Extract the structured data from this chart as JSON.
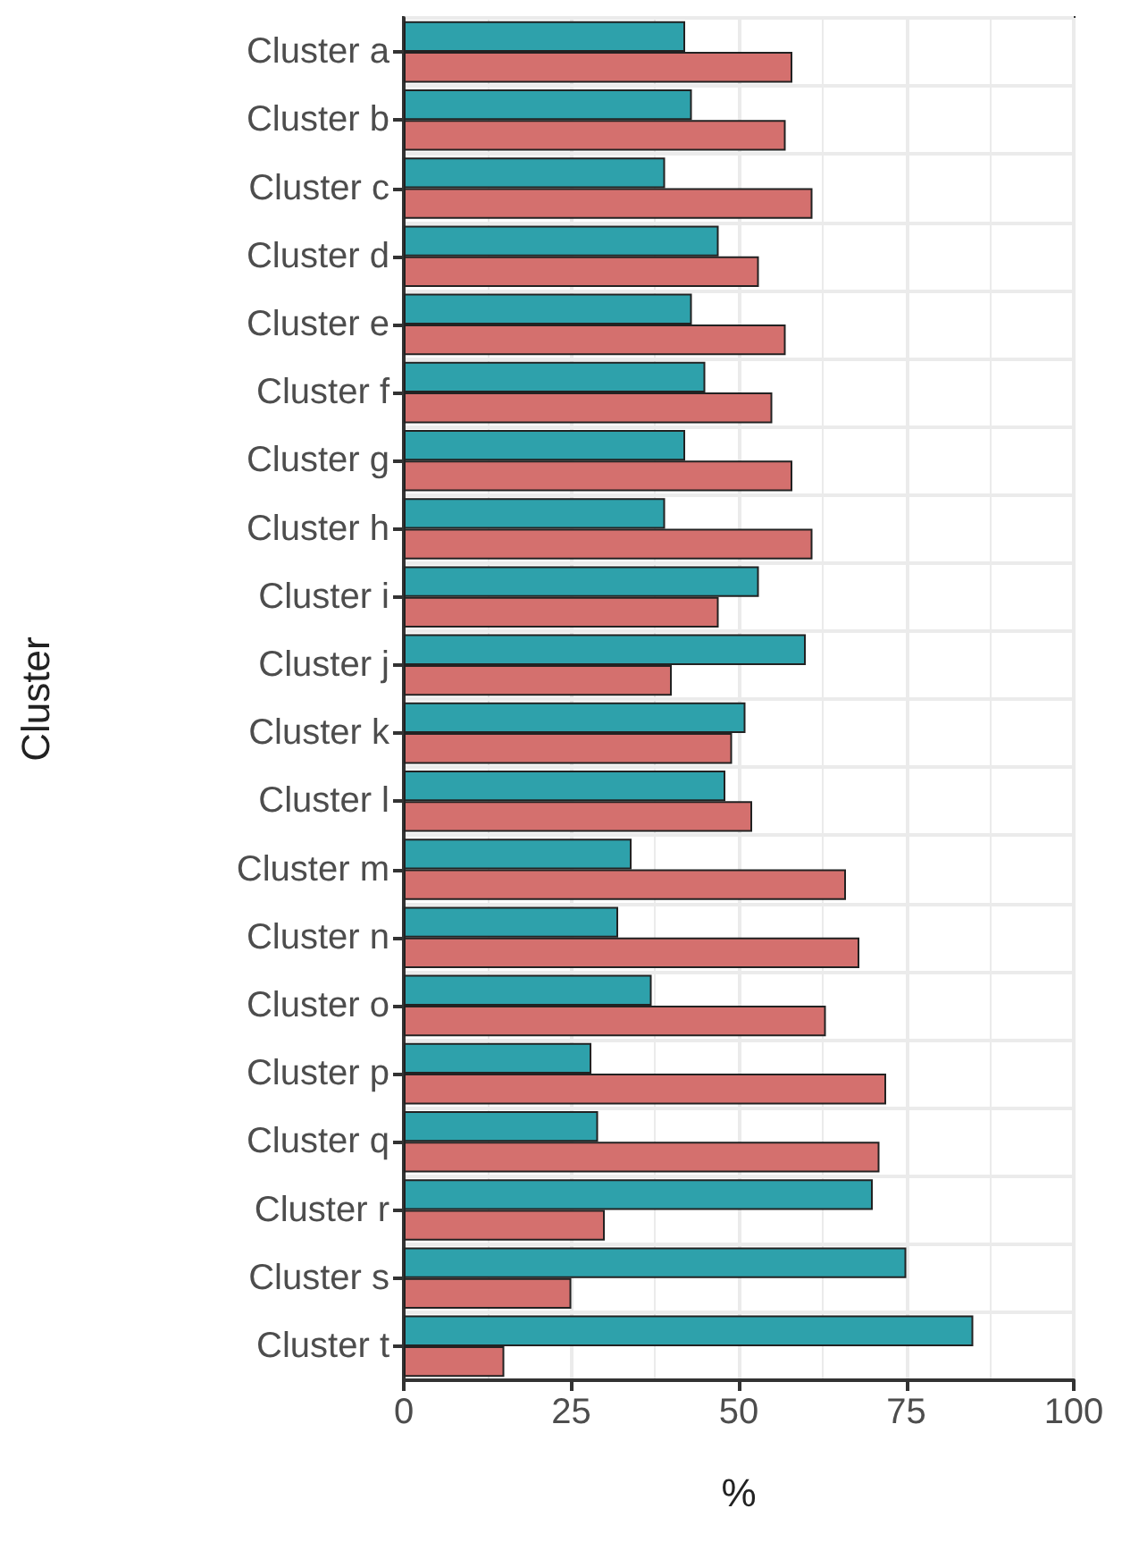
{
  "chart_data": {
    "type": "bar",
    "orientation": "horizontal",
    "xlabel": "%",
    "ylabel": "Cluster",
    "categories": [
      "Cluster a",
      "Cluster b",
      "Cluster c",
      "Cluster d",
      "Cluster e",
      "Cluster f",
      "Cluster g",
      "Cluster h",
      "Cluster i",
      "Cluster j",
      "Cluster k",
      "Cluster l",
      "Cluster m",
      "Cluster n",
      "Cluster o",
      "Cluster p",
      "Cluster q",
      "Cluster r",
      "Cluster s",
      "Cluster t"
    ],
    "series": [
      {
        "color": "#2ea1ab",
        "values": [
          42,
          43,
          39,
          47,
          43,
          45,
          42,
          39,
          53,
          60,
          51,
          48,
          34,
          32,
          37,
          28,
          29,
          70,
          75,
          85
        ]
      },
      {
        "color": "#d4706e",
        "values": [
          58,
          57,
          61,
          53,
          57,
          55,
          58,
          61,
          47,
          40,
          49,
          52,
          66,
          68,
          63,
          72,
          71,
          30,
          25,
          15
        ]
      }
    ],
    "xlim": [
      0,
      100
    ],
    "xticks": [
      0,
      25,
      50,
      75,
      100
    ],
    "grid": true
  }
}
